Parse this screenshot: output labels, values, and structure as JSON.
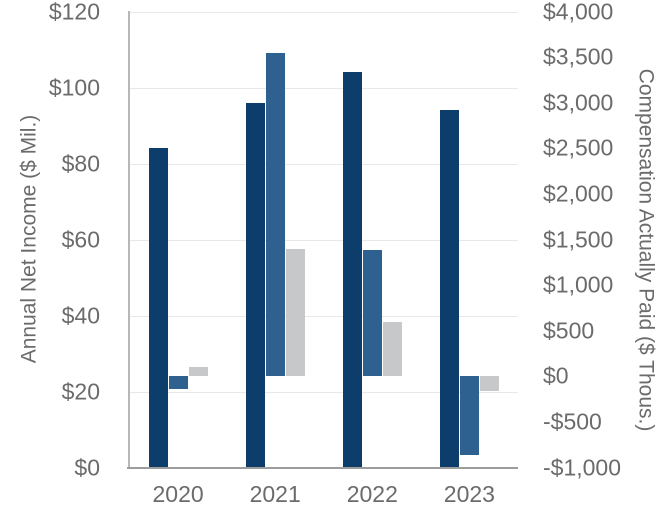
{
  "chart_data": {
    "type": "bar",
    "title": "",
    "categories": [
      "2020",
      "2021",
      "2022",
      "2023"
    ],
    "series": [
      {
        "name": "Annual Net Income (navy)",
        "axis": "left",
        "unit": "$ Mil.",
        "color": "#0d3e6b",
        "values": [
          84,
          96,
          104,
          94
        ]
      },
      {
        "name": "Compensation Actually Paid - series 1 (blue)",
        "axis": "right",
        "unit": "$ Thous.",
        "color": "#2f6190",
        "values": [
          -140,
          3550,
          1390,
          -860
        ]
      },
      {
        "name": "Compensation Actually Paid - series 2 (gray)",
        "axis": "right",
        "unit": "$ Thous.",
        "color": "#c7c8c9",
        "values": [
          100,
          1400,
          600,
          -160
        ]
      }
    ],
    "left_axis": {
      "label": "Annual Net Income ($ Mil.)",
      "min": 0,
      "max": 120,
      "step": 20,
      "ticks_top_down": [
        "$120",
        "$100",
        "$80",
        "$60",
        "$40",
        "$20",
        "$0"
      ]
    },
    "right_axis": {
      "label": "Compensation Actually Paid ($ Thous.)",
      "min": -1000,
      "max": 4000,
      "step": 500,
      "ticks_top_down": [
        "$4,000",
        "$3,500",
        "$3,000",
        "$2,500",
        "$2,000",
        "$1,500",
        "$1,000",
        "$500",
        "$0",
        "-$500",
        "-$1,000"
      ]
    },
    "x_axis": {
      "labels": [
        "2020",
        "2021",
        "2022",
        "2023"
      ]
    },
    "grid": "horizontal-only",
    "legend": "none"
  }
}
